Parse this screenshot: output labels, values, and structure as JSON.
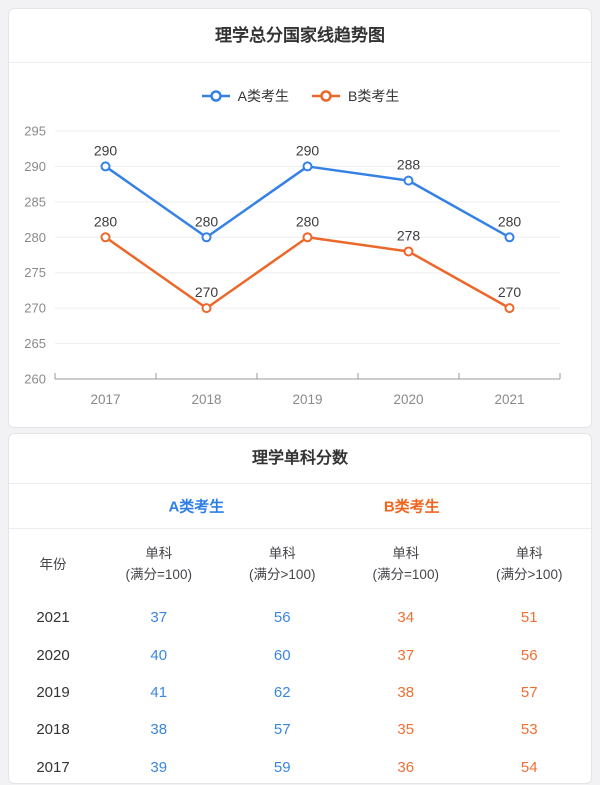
{
  "colors": {
    "page_bg": "#f2f2f4",
    "card_border": "#e4e4e7",
    "divider": "#ededf0",
    "title_text": "#333333",
    "axis_label": "#8a8a8e",
    "axis_line": "#9a9a9e",
    "grid_line": "#ededf1",
    "data_label": "#3d3d40",
    "series_a": "#3582e4",
    "series_b": "#ec682a",
    "table_value_a": "#3b87e0",
    "table_value_b": "#ed7033",
    "group_a": "#2e80e8",
    "group_b": "#f0661f",
    "table_year": "#333333"
  },
  "trend_card": {
    "title": "理学总分国家线趋势图"
  },
  "chart_data": {
    "type": "line",
    "title": "理学总分国家线趋势图",
    "categories": [
      "2017",
      "2018",
      "2019",
      "2020",
      "2021"
    ],
    "series": [
      {
        "name": "A类考生",
        "color": "#3582e4",
        "values": [
          290,
          280,
          290,
          288,
          280
        ]
      },
      {
        "name": "B类考生",
        "color": "#ec682a",
        "values": [
          280,
          270,
          280,
          278,
          270
        ]
      }
    ],
    "xlabel": "",
    "ylabel": "",
    "ylim": [
      260,
      295
    ],
    "ytick_step": 5,
    "yticks": [
      260,
      265,
      270,
      275,
      280,
      285,
      290,
      295
    ],
    "grid": true,
    "legend_position": "top",
    "data_labels": true,
    "marker": "hollow-circle"
  },
  "table_card": {
    "title": "理学单科分数",
    "groups": [
      {
        "label": "A类考生",
        "color": "#2e80e8"
      },
      {
        "label": "B类考生",
        "color": "#f0661f"
      }
    ],
    "columns": [
      {
        "label": "年份",
        "sub": ""
      },
      {
        "label": "单科",
        "sub": "(满分=100)"
      },
      {
        "label": "单科",
        "sub": "(满分>100)"
      },
      {
        "label": "单科",
        "sub": "(满分=100)"
      },
      {
        "label": "单科",
        "sub": "(满分>100)"
      }
    ],
    "rows": [
      {
        "year": "2021",
        "values": [
          37,
          56,
          34,
          51
        ]
      },
      {
        "year": "2020",
        "values": [
          40,
          60,
          37,
          56
        ]
      },
      {
        "year": "2019",
        "values": [
          41,
          62,
          38,
          57
        ]
      },
      {
        "year": "2018",
        "values": [
          38,
          57,
          35,
          53
        ]
      },
      {
        "year": "2017",
        "values": [
          39,
          59,
          36,
          54
        ]
      }
    ]
  }
}
